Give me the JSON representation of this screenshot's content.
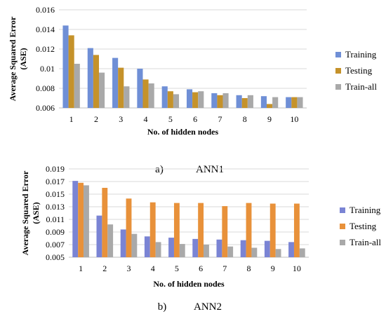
{
  "chart_data": [
    {
      "type": "bar",
      "caption_letter": "a)",
      "caption_name": "ANN1",
      "xlabel": "No. of hidden nodes",
      "ylabel": "Average Squared Error (ASE)",
      "ylim": [
        0.006,
        0.016
      ],
      "yticks": [
        "0.006",
        "0.008",
        "0.01",
        "0.012",
        "0.014",
        "0.016"
      ],
      "grid": true,
      "legend": "right",
      "categories": [
        "1",
        "2",
        "3",
        "4",
        "5",
        "6",
        "7",
        "8",
        "9",
        "10"
      ],
      "series": [
        {
          "name": "Training",
          "color": "#6f8fd6",
          "values": [
            0.0144,
            0.0121,
            0.0111,
            0.01,
            0.0082,
            0.0079,
            0.0075,
            0.0073,
            0.0072,
            0.0071
          ]
        },
        {
          "name": "Testing",
          "color": "#c5922a",
          "values": [
            0.0134,
            0.0114,
            0.0101,
            0.0089,
            0.0077,
            0.0076,
            0.0073,
            0.007,
            0.0064,
            0.0071
          ]
        },
        {
          "name": "Train-all",
          "color": "#a9a9a9",
          "values": [
            0.0105,
            0.0096,
            0.0082,
            0.0085,
            0.0074,
            0.0077,
            0.0075,
            0.0073,
            0.0071,
            0.0071
          ]
        }
      ]
    },
    {
      "type": "bar",
      "caption_letter": "b)",
      "caption_name": "ANN2",
      "xlabel": "No. of hidden nodes",
      "ylabel": "Average Squared Error (ASE)",
      "ylim": [
        0.005,
        0.019
      ],
      "yticks": [
        "0.005",
        "0.007",
        "0.009",
        "0.011",
        "0.013",
        "0.015",
        "0.017",
        "0.019"
      ],
      "grid": true,
      "legend": "right",
      "categories": [
        "1",
        "2",
        "3",
        "4",
        "5",
        "6",
        "7",
        "8",
        "9",
        "10"
      ],
      "series": [
        {
          "name": "Training",
          "color": "#7a84d4",
          "values": [
            0.0171,
            0.0116,
            0.0094,
            0.0083,
            0.0081,
            0.0079,
            0.0078,
            0.0077,
            0.0076,
            0.0074
          ]
        },
        {
          "name": "Testing",
          "color": "#e8913a",
          "values": [
            0.0168,
            0.016,
            0.0143,
            0.0137,
            0.0136,
            0.0136,
            0.0131,
            0.0136,
            0.0135,
            0.0135
          ]
        },
        {
          "name": "Train-all",
          "color": "#a9a9a9",
          "values": [
            0.0164,
            0.0102,
            0.0087,
            0.0074,
            0.0071,
            0.007,
            0.0067,
            0.0065,
            0.0063,
            0.0064
          ]
        }
      ]
    }
  ]
}
